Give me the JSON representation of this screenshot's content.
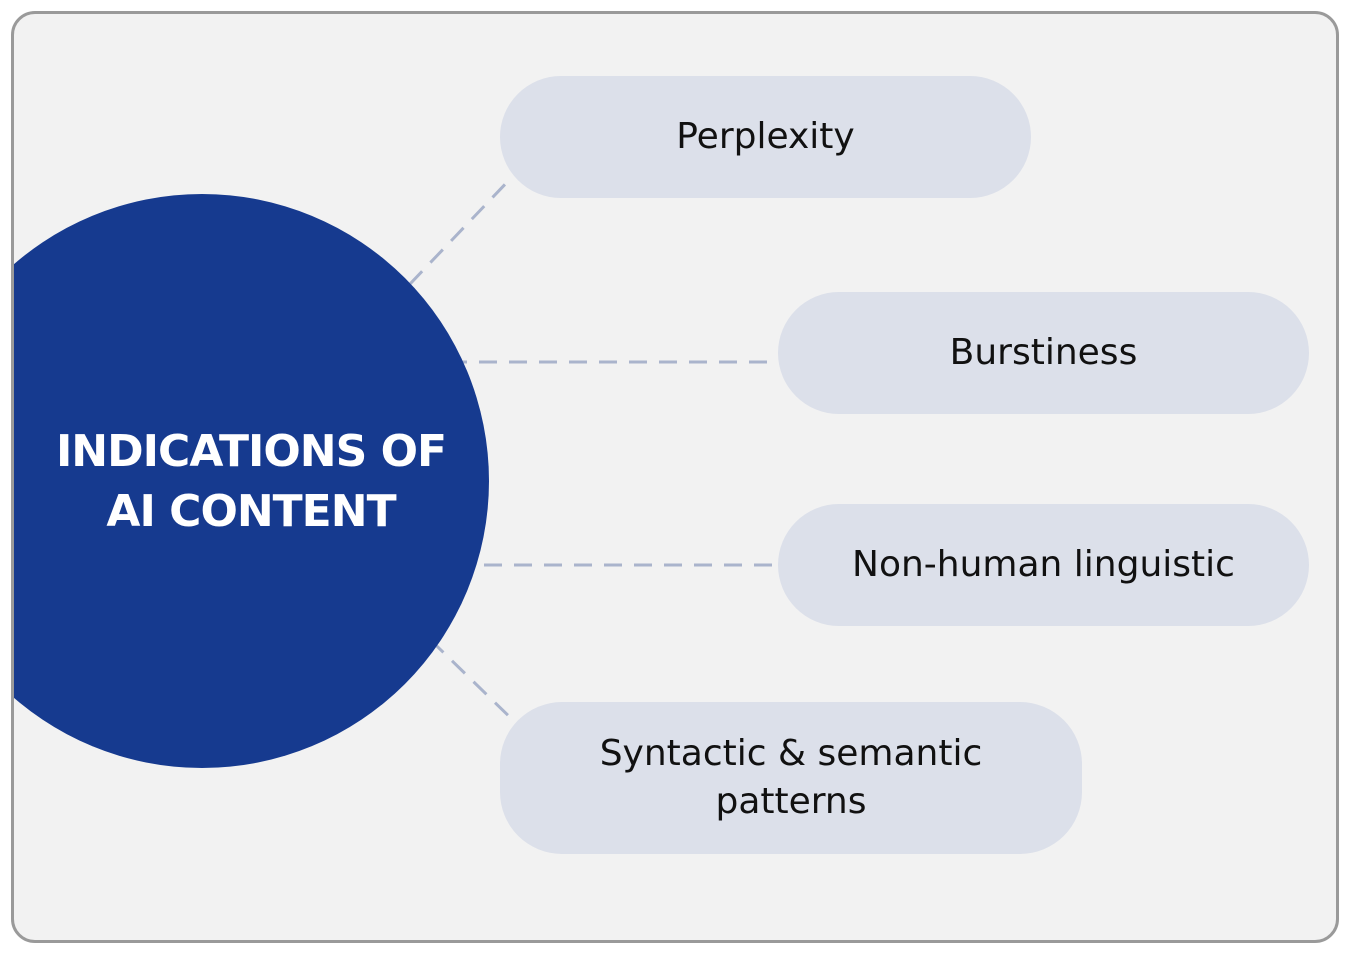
{
  "diagram": {
    "center": {
      "line1": "INDICATIONS OF",
      "line2": "AI CONTENT"
    },
    "nodes": [
      {
        "label": "Perplexity"
      },
      {
        "label": "Burstiness"
      },
      {
        "label": "Non-human linguistic"
      },
      {
        "line1": "Syntactic & semantic",
        "line2": "patterns"
      }
    ]
  },
  "colors": {
    "background": "#f2f2f2",
    "border": "#9a9a9a",
    "hub": "#163a8f",
    "node": "#dce0ea",
    "connector": "#aab4cc"
  }
}
